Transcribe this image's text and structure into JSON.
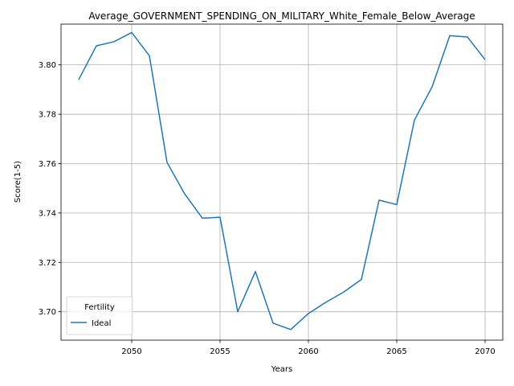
{
  "chart_data": {
    "type": "line",
    "title": "Average_GOVERNMENT_SPENDING_ON_MILITARY_White_Female_Below_Average",
    "xlabel": "Years",
    "ylabel": "Score(1-5)",
    "xlim": [
      2046,
      2071
    ],
    "ylim": [
      3.6885,
      3.8165
    ],
    "xticks": [
      2050,
      2055,
      2060,
      2065,
      2070
    ],
    "yticks": [
      3.7,
      3.72,
      3.74,
      3.76,
      3.78,
      3.8
    ],
    "ytick_labels": [
      "3.70",
      "3.72",
      "3.74",
      "3.76",
      "3.78",
      "3.80"
    ],
    "grid": true,
    "legend": {
      "title": "Fertility",
      "position": "lower-left"
    },
    "series": [
      {
        "name": "Ideal",
        "color": "#1f77b4",
        "x": [
          2047,
          2048,
          2049,
          2050,
          2051,
          2052,
          2053,
          2054,
          2055,
          2056,
          2057,
          2058,
          2059,
          2060,
          2061,
          2062,
          2063,
          2064,
          2065,
          2066,
          2067,
          2068,
          2069,
          2070
        ],
        "y": [
          3.794,
          3.8077,
          3.8094,
          3.8131,
          3.8037,
          3.7605,
          3.7477,
          3.7379,
          3.7383,
          3.7,
          3.7163,
          3.6954,
          3.6928,
          3.6993,
          3.7039,
          3.708,
          3.7131,
          3.7452,
          3.7434,
          3.7776,
          3.7911,
          3.8118,
          3.8113,
          3.8021
        ]
      }
    ]
  }
}
